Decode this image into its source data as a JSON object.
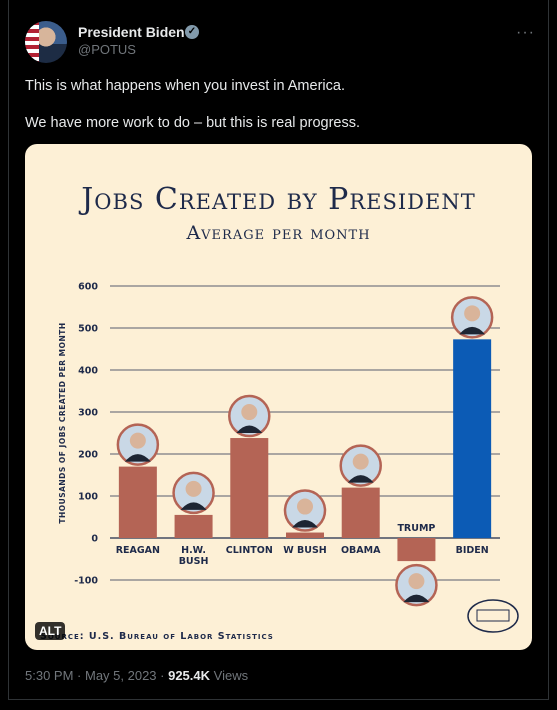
{
  "tweet": {
    "author_name": "President Biden",
    "verified_icon": "verified-badge-icon",
    "handle": "@POTUS",
    "more_icon": "more-dots-icon",
    "line1": "This is what happens when you invest in America.",
    "line2": "We have more work to do – but this is real progress.",
    "alt_label": "ALT",
    "time": "5:30 PM",
    "date": "May 5, 2023",
    "views_count": "925.4K",
    "views_label": "Views"
  },
  "image": {
    "title": "Jobs Created by President",
    "subtitle": "Average per month",
    "source": "Source: U.S. Bureau of Labor Statistics",
    "seal_icon": "white-house-seal-icon",
    "bar_color": "#b46455",
    "highlight_color": "#0c5bb5"
  },
  "chart_data": {
    "type": "bar",
    "categories": [
      "REAGAN",
      "H.W. BUSH",
      "CLINTON",
      "W BUSH",
      "OBAMA",
      "TRUMP",
      "BIDEN"
    ],
    "values": [
      170,
      55,
      238,
      13,
      120,
      -55,
      473
    ],
    "highlight": "BIDEN",
    "ylabel": "Thousands of Jobs Created per Month",
    "ylim": [
      -100,
      600
    ],
    "yticks": [
      -100,
      0,
      100,
      200,
      300,
      400,
      500,
      600
    ],
    "grid": true
  }
}
